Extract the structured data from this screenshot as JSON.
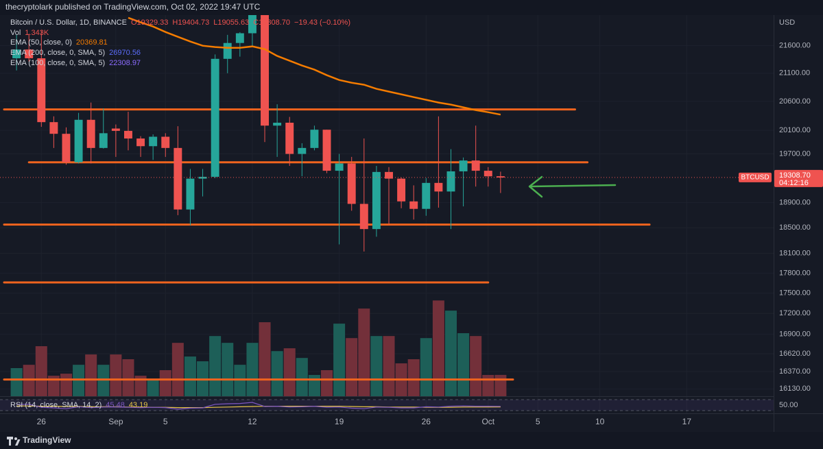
{
  "header": {
    "published": "thecryptolark published on TradingView.com, Oct 02, 2022 19:47 UTC",
    "footer": "TradingView"
  },
  "chart_data": {
    "type": "candlestick",
    "title": "Bitcoin / U.S. Dollar, 1D, BINANCE",
    "ohlc_text": [
      "O19329.33",
      "H19404.73",
      "L19055.63",
      "C19308.70",
      "−19.43 (−0.10%)"
    ],
    "x": [
      "08-24",
      "08-25",
      "08-26",
      "08-27",
      "08-28",
      "08-29",
      "08-30",
      "08-31",
      "09-01",
      "09-02",
      "09-03",
      "09-04",
      "09-05",
      "09-06",
      "09-07",
      "09-08",
      "09-09",
      "09-10",
      "09-11",
      "09-12",
      "09-13",
      "09-14",
      "09-15",
      "09-16",
      "09-17",
      "09-18",
      "09-19",
      "09-20",
      "09-21",
      "09-22",
      "09-23",
      "09-24",
      "09-25",
      "09-26",
      "09-27",
      "09-28",
      "09-29",
      "09-30",
      "10-01",
      "10-02"
    ],
    "open": [
      21370,
      21530,
      21370,
      20240,
      20040,
      19560,
      20280,
      19800,
      20130,
      20090,
      19960,
      19830,
      19990,
      19800,
      18790,
      19290,
      19320,
      21360,
      21650,
      21830,
      22400,
      20180,
      20230,
      19700,
      19800,
      20110,
      19420,
      19540,
      18880,
      18480,
      19400,
      19290,
      18920,
      18800,
      19220,
      19080,
      19410,
      19590,
      19420,
      19329.33
    ],
    "high": [
      21800,
      21820,
      21880,
      20340,
      20150,
      20400,
      20580,
      20480,
      20200,
      20420,
      20000,
      20030,
      20050,
      20170,
      19450,
      19450,
      21440,
      21800,
      21850,
      22450,
      22800,
      20550,
      20330,
      19880,
      20180,
      20110,
      19700,
      19650,
      19960,
      19500,
      19480,
      19310,
      19180,
      19300,
      20340,
      19780,
      19640,
      20180,
      19480,
      19404.73
    ],
    "low": [
      21150,
      21310,
      20160,
      19800,
      19520,
      19540,
      19540,
      19790,
      19650,
      19760,
      19650,
      19600,
      19650,
      18700,
      18540,
      19000,
      19300,
      21100,
      21400,
      21600,
      19900,
      19650,
      19500,
      19330,
      19760,
      19380,
      18240,
      18770,
      18130,
      18360,
      18560,
      18810,
      18630,
      18690,
      18820,
      18480,
      18840,
      19160,
      19160,
      19055.63
    ],
    "close": [
      21530,
      21370,
      20240,
      20040,
      19560,
      20280,
      19800,
      20050,
      20090,
      19960,
      19830,
      19990,
      19800,
      18790,
      19290,
      19320,
      21360,
      21650,
      21830,
      22400,
      20180,
      20230,
      19700,
      19800,
      20110,
      19420,
      19540,
      18880,
      18480,
      19400,
      19290,
      18920,
      18800,
      19220,
      19080,
      19410,
      19590,
      19420,
      19328.13,
      19308.7
    ],
    "up_color": "#26a69a",
    "down_color": "#ef5350",
    "y_unit": "USD",
    "ylim": [
      16030,
      22170
    ],
    "log_scale": true,
    "grid": true,
    "yticks": [
      {
        "value": 21600,
        "label": "21600.00"
      },
      {
        "value": 21100,
        "label": "21100.00"
      },
      {
        "value": 20600,
        "label": "20600.00"
      },
      {
        "value": 20100,
        "label": "20100.00"
      },
      {
        "value": 19700,
        "label": "19700.00"
      },
      {
        "value": 18900,
        "label": "18900.00"
      },
      {
        "value": 18500,
        "label": "18500.00"
      },
      {
        "value": 18100,
        "label": "18100.00"
      },
      {
        "value": 17800,
        "label": "17800.00"
      },
      {
        "value": 17500,
        "label": "17500.00"
      },
      {
        "value": 17200,
        "label": "17200.00"
      },
      {
        "value": 16900,
        "label": "16900.00"
      },
      {
        "value": 16620,
        "label": "16620.00"
      },
      {
        "value": 16370,
        "label": "16370.00"
      },
      {
        "value": 16130,
        "label": "16130.00"
      }
    ],
    "xlim": [
      "08-23",
      "10-24"
    ],
    "xticks": [
      {
        "value": "08-26",
        "label": "26"
      },
      {
        "value": "09-01",
        "label": "Sep"
      },
      {
        "value": "09-05",
        "label": "5"
      },
      {
        "value": "09-12",
        "label": "12"
      },
      {
        "value": "09-19",
        "label": "19"
      },
      {
        "value": "09-26",
        "label": "26"
      },
      {
        "value": "10-01",
        "label": "Oct"
      },
      {
        "value": "10-05",
        "label": "5"
      },
      {
        "value": "10-10",
        "label": "10"
      },
      {
        "value": "10-17",
        "label": "17"
      }
    ],
    "volume": {
      "name": "Vol",
      "last_label": "1.343K",
      "ylim": [
        0,
        24
      ],
      "up_color": "#1d5f58",
      "down_color": "#73303a",
      "values": [
        1.77,
        1.98,
        3.15,
        1.29,
        1.42,
        1.98,
        2.63,
        1.98,
        2.63,
        2.33,
        1.29,
        1.08,
        1.64,
        3.36,
        2.5,
        2.2,
        3.79,
        3.36,
        1.98,
        3.36,
        4.66,
        2.84,
        3.02,
        2.41,
        1.34,
        1.64,
        4.57,
        3.66,
        5.52,
        3.79,
        3.79,
        2.07,
        2.33,
        3.66,
        6.03,
        5.39,
        3.97,
        3.79,
        1.34,
        1.343
      ]
    },
    "indicators": [
      {
        "name": "EMA (50, close, 0)",
        "color": "#f57c00",
        "values": [
          null,
          null,
          null,
          null,
          null,
          null,
          null,
          null,
          null,
          22120,
          22033,
          21955,
          21853,
          21764,
          21676,
          21600,
          21575,
          21562,
          21562,
          21587,
          21537,
          21412,
          21325,
          21238,
          21164,
          21065,
          20979,
          20930,
          20894,
          20821,
          20773,
          20725,
          20675,
          20628,
          20580,
          20544,
          20496,
          20448,
          20412,
          20369.81
        ]
      },
      {
        "name": "EMA (200, close, 0, SMA, 5)",
        "color": "#5b6cf9",
        "last": 26970.56
      },
      {
        "name": "EMA (100, close, 0, SMA, 5)",
        "color": "#8c6cff",
        "last": 22308.97
      }
    ],
    "levels": [
      {
        "value": 20460,
        "start": "08-23",
        "end": "10-08"
      },
      {
        "value": 19560,
        "start": "08-25",
        "end": "10-09"
      },
      {
        "value": 18550,
        "start": "08-23",
        "end": "10-14"
      },
      {
        "value": 17660,
        "start": "08-23",
        "end": "10-01"
      },
      {
        "value": 16260,
        "start": "08-23",
        "end": "10-03"
      }
    ],
    "levels_color": "#f0641e",
    "last_price": {
      "symbol": "BTCUSD",
      "value": 19308.7,
      "label": "19308.70",
      "countdown": "04:12:16"
    },
    "rsi": {
      "name": "RSI (14, close, SMA, 14, 2)",
      "color": "#7e57c2",
      "sma_color": "#e8c547",
      "ylim": [
        20,
        80
      ],
      "bands": [
        70,
        30
      ],
      "yticks": [
        {
          "value": 50,
          "label": "50.00"
        }
      ],
      "values": [
        52,
        53,
        42,
        40,
        37,
        44,
        41,
        43,
        43,
        42,
        41,
        42,
        41,
        35,
        39,
        40,
        53,
        55,
        56,
        60,
        45,
        46,
        43,
        44,
        46,
        42,
        43,
        39,
        37,
        43,
        42,
        40,
        40,
        44,
        43,
        46,
        47,
        46,
        46,
        45.48
      ],
      "sma_values": [
        47,
        47,
        46,
        46,
        45,
        45,
        44,
        44,
        44,
        43,
        43,
        42,
        42,
        41,
        41,
        41,
        42,
        43,
        44,
        45,
        46,
        46,
        46,
        46,
        46,
        46,
        46,
        45,
        44,
        44,
        43,
        43,
        43,
        42,
        42,
        42,
        43,
        43,
        43,
        43.19
      ]
    }
  }
}
